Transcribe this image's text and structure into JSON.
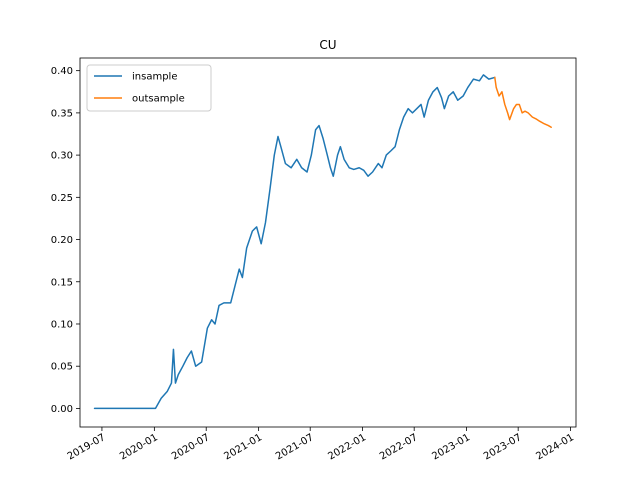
{
  "chart_data": {
    "type": "line",
    "title": "CU",
    "xlabel": "",
    "ylabel": "",
    "xlim": [
      "2019-04-15",
      "2024-01-20"
    ],
    "ylim": [
      -0.022,
      0.415
    ],
    "grid": false,
    "legend_position": "top-left",
    "x_ticks": [
      "2019-07",
      "2020-01",
      "2020-07",
      "2021-01",
      "2021-07",
      "2022-01",
      "2022-07",
      "2023-01",
      "2023-07",
      "2024-01"
    ],
    "y_ticks": [
      "0.00",
      "0.05",
      "0.10",
      "0.15",
      "0.20",
      "0.25",
      "0.30",
      "0.35",
      "0.40"
    ],
    "series": [
      {
        "name": "insample",
        "color": "#1f77b4",
        "points": [
          [
            "2019-06-05",
            0.0
          ],
          [
            "2019-12-20",
            0.0
          ],
          [
            "2020-01-05",
            0.0
          ],
          [
            "2020-01-25",
            0.012
          ],
          [
            "2020-02-15",
            0.02
          ],
          [
            "2020-03-01",
            0.03
          ],
          [
            "2020-03-08",
            0.07
          ],
          [
            "2020-03-15",
            0.03
          ],
          [
            "2020-03-25",
            0.04
          ],
          [
            "2020-04-10",
            0.05
          ],
          [
            "2020-04-25",
            0.06
          ],
          [
            "2020-05-10",
            0.068
          ],
          [
            "2020-05-25",
            0.05
          ],
          [
            "2020-06-15",
            0.055
          ],
          [
            "2020-06-25",
            0.075
          ],
          [
            "2020-07-05",
            0.095
          ],
          [
            "2020-07-20",
            0.105
          ],
          [
            "2020-08-01",
            0.1
          ],
          [
            "2020-08-15",
            0.122
          ],
          [
            "2020-09-01",
            0.125
          ],
          [
            "2020-09-25",
            0.125
          ],
          [
            "2020-10-10",
            0.145
          ],
          [
            "2020-10-25",
            0.165
          ],
          [
            "2020-11-05",
            0.155
          ],
          [
            "2020-11-20",
            0.19
          ],
          [
            "2020-12-10",
            0.21
          ],
          [
            "2020-12-25",
            0.215
          ],
          [
            "2021-01-10",
            0.195
          ],
          [
            "2021-01-25",
            0.22
          ],
          [
            "2021-02-10",
            0.26
          ],
          [
            "2021-02-25",
            0.3
          ],
          [
            "2021-03-10",
            0.322
          ],
          [
            "2021-03-20",
            0.31
          ],
          [
            "2021-04-05",
            0.29
          ],
          [
            "2021-04-25",
            0.285
          ],
          [
            "2021-05-15",
            0.295
          ],
          [
            "2021-06-01",
            0.285
          ],
          [
            "2021-06-20",
            0.28
          ],
          [
            "2021-07-05",
            0.3
          ],
          [
            "2021-07-20",
            0.33
          ],
          [
            "2021-08-01",
            0.335
          ],
          [
            "2021-08-15",
            0.32
          ],
          [
            "2021-08-30",
            0.3
          ],
          [
            "2021-09-10",
            0.285
          ],
          [
            "2021-09-20",
            0.275
          ],
          [
            "2021-10-05",
            0.3
          ],
          [
            "2021-10-15",
            0.31
          ],
          [
            "2021-10-28",
            0.295
          ],
          [
            "2021-11-15",
            0.285
          ],
          [
            "2021-12-01",
            0.283
          ],
          [
            "2021-12-20",
            0.285
          ],
          [
            "2022-01-05",
            0.282
          ],
          [
            "2022-01-20",
            0.275
          ],
          [
            "2022-02-05",
            0.28
          ],
          [
            "2022-02-25",
            0.29
          ],
          [
            "2022-03-10",
            0.285
          ],
          [
            "2022-03-25",
            0.3
          ],
          [
            "2022-04-10",
            0.305
          ],
          [
            "2022-04-25",
            0.31
          ],
          [
            "2022-05-10",
            0.33
          ],
          [
            "2022-05-25",
            0.345
          ],
          [
            "2022-06-10",
            0.355
          ],
          [
            "2022-06-25",
            0.35
          ],
          [
            "2022-07-10",
            0.355
          ],
          [
            "2022-07-25",
            0.36
          ],
          [
            "2022-08-05",
            0.345
          ],
          [
            "2022-08-20",
            0.365
          ],
          [
            "2022-09-05",
            0.375
          ],
          [
            "2022-09-20",
            0.38
          ],
          [
            "2022-10-05",
            0.368
          ],
          [
            "2022-10-15",
            0.355
          ],
          [
            "2022-10-30",
            0.37
          ],
          [
            "2022-11-15",
            0.375
          ],
          [
            "2022-12-01",
            0.365
          ],
          [
            "2022-12-20",
            0.37
          ],
          [
            "2023-01-05",
            0.38
          ],
          [
            "2023-01-25",
            0.39
          ],
          [
            "2023-02-15",
            0.388
          ],
          [
            "2023-03-01",
            0.395
          ],
          [
            "2023-03-20",
            0.39
          ],
          [
            "2023-04-10",
            0.392
          ]
        ]
      },
      {
        "name": "outsample",
        "color": "#ff7f0e",
        "points": [
          [
            "2023-04-10",
            0.392
          ],
          [
            "2023-04-15",
            0.38
          ],
          [
            "2023-04-25",
            0.37
          ],
          [
            "2023-05-05",
            0.375
          ],
          [
            "2023-05-15",
            0.36
          ],
          [
            "2023-05-25",
            0.35
          ],
          [
            "2023-06-01",
            0.342
          ],
          [
            "2023-06-15",
            0.355
          ],
          [
            "2023-06-25",
            0.36
          ],
          [
            "2023-07-05",
            0.36
          ],
          [
            "2023-07-15",
            0.35
          ],
          [
            "2023-07-25",
            0.352
          ],
          [
            "2023-08-05",
            0.35
          ],
          [
            "2023-08-20",
            0.345
          ],
          [
            "2023-09-01",
            0.343
          ],
          [
            "2023-09-15",
            0.34
          ],
          [
            "2023-10-01",
            0.337
          ],
          [
            "2023-10-15",
            0.335
          ],
          [
            "2023-10-25",
            0.333
          ]
        ]
      }
    ]
  }
}
